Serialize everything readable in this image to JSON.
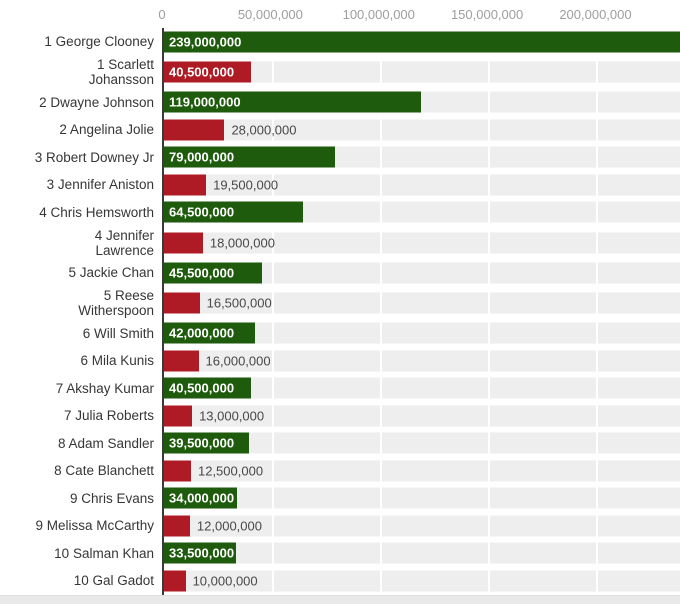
{
  "chart_data": {
    "type": "bar",
    "orientation": "horizontal",
    "title": "",
    "x_axis": {
      "position": "top",
      "ticks": [
        0,
        50000000,
        100000000,
        150000000,
        200000000
      ],
      "tick_labels": [
        "0",
        "50,000,000",
        "100,000,000",
        "150,000,000",
        "200,000,000"
      ],
      "axis_max": 239000000,
      "grid": true
    },
    "legend_position": "none",
    "series_colors": {
      "actor": "#1e5b0c",
      "actress": "#af1b24"
    },
    "rows": [
      {
        "rank": "1",
        "name": "George Clooney",
        "label_lines": [
          "1 George Clooney"
        ],
        "value": 239000000,
        "value_label": "239,000,000",
        "series": "actor",
        "annotation": "inside"
      },
      {
        "rank": "1",
        "name": "Scarlett Johansson",
        "label_lines": [
          "1 Scarlett",
          "Johansson"
        ],
        "value": 40500000,
        "value_label": "40,500,000",
        "series": "actress",
        "annotation": "inside"
      },
      {
        "rank": "2",
        "name": "Dwayne Johnson",
        "label_lines": [
          "2 Dwayne Johnson"
        ],
        "value": 119000000,
        "value_label": "119,000,000",
        "series": "actor",
        "annotation": "inside"
      },
      {
        "rank": "2",
        "name": "Angelina Jolie",
        "label_lines": [
          "2 Angelina Jolie"
        ],
        "value": 28000000,
        "value_label": "28,000,000",
        "series": "actress",
        "annotation": "outside"
      },
      {
        "rank": "3",
        "name": "Robert Downey Jr",
        "label_lines": [
          "3 Robert Downey Jr"
        ],
        "value": 79000000,
        "value_label": "79,000,000",
        "series": "actor",
        "annotation": "inside"
      },
      {
        "rank": "3",
        "name": "Jennifer Aniston",
        "label_lines": [
          "3 Jennifer Aniston"
        ],
        "value": 19500000,
        "value_label": "19,500,000",
        "series": "actress",
        "annotation": "outside"
      },
      {
        "rank": "4",
        "name": "Chris Hemsworth",
        "label_lines": [
          "4 Chris Hemsworth"
        ],
        "value": 64500000,
        "value_label": "64,500,000",
        "series": "actor",
        "annotation": "inside"
      },
      {
        "rank": "4",
        "name": "Jennifer Lawrence",
        "label_lines": [
          "4 Jennifer",
          "Lawrence"
        ],
        "value": 18000000,
        "value_label": "18,000,000",
        "series": "actress",
        "annotation": "outside"
      },
      {
        "rank": "5",
        "name": "Jackie Chan",
        "label_lines": [
          "5 Jackie Chan"
        ],
        "value": 45500000,
        "value_label": "45,500,000",
        "series": "actor",
        "annotation": "inside"
      },
      {
        "rank": "5",
        "name": "Reese Witherspoon",
        "label_lines": [
          "5 Reese",
          "Witherspoon"
        ],
        "value": 16500000,
        "value_label": "16,500,000",
        "series": "actress",
        "annotation": "outside"
      },
      {
        "rank": "6",
        "name": "Will Smith",
        "label_lines": [
          "6 Will Smith"
        ],
        "value": 42000000,
        "value_label": "42,000,000",
        "series": "actor",
        "annotation": "inside"
      },
      {
        "rank": "6",
        "name": "Mila Kunis",
        "label_lines": [
          "6 Mila Kunis"
        ],
        "value": 16000000,
        "value_label": "16,000,000",
        "series": "actress",
        "annotation": "outside"
      },
      {
        "rank": "7",
        "name": "Akshay Kumar",
        "label_lines": [
          "7 Akshay Kumar"
        ],
        "value": 40500000,
        "value_label": "40,500,000",
        "series": "actor",
        "annotation": "inside"
      },
      {
        "rank": "7",
        "name": "Julia Roberts",
        "label_lines": [
          "7 Julia Roberts"
        ],
        "value": 13000000,
        "value_label": "13,000,000",
        "series": "actress",
        "annotation": "outside"
      },
      {
        "rank": "8",
        "name": "Adam Sandler",
        "label_lines": [
          "8 Adam Sandler"
        ],
        "value": 39500000,
        "value_label": "39,500,000",
        "series": "actor",
        "annotation": "inside"
      },
      {
        "rank": "8",
        "name": "Cate Blanchett",
        "label_lines": [
          "8 Cate Blanchett"
        ],
        "value": 12500000,
        "value_label": "12,500,000",
        "series": "actress",
        "annotation": "outside"
      },
      {
        "rank": "9",
        "name": "Chris Evans",
        "label_lines": [
          "9 Chris Evans"
        ],
        "value": 34000000,
        "value_label": "34,000,000",
        "series": "actor",
        "annotation": "inside"
      },
      {
        "rank": "9",
        "name": "Melissa McCarthy",
        "label_lines": [
          "9 Melissa McCarthy"
        ],
        "value": 12000000,
        "value_label": "12,000,000",
        "series": "actress",
        "annotation": "outside"
      },
      {
        "rank": "10",
        "name": "Salman Khan",
        "label_lines": [
          "10 Salman Khan"
        ],
        "value": 33500000,
        "value_label": "33,500,000",
        "series": "actor",
        "annotation": "inside"
      },
      {
        "rank": "10",
        "name": "Gal Gadot",
        "label_lines": [
          "10 Gal Gadot"
        ],
        "value": 10000000,
        "value_label": "10,000,000",
        "series": "actress",
        "annotation": "outside"
      }
    ]
  },
  "colors": {
    "bar_green": "#1e5b0c",
    "bar_red": "#af1b24",
    "row_band": "#eeeeee",
    "axis_tick_text": "#9e9e9e",
    "row_label_text": "#363636",
    "value_inside_text": "#ffffff",
    "value_outside_text": "#484848",
    "axis_line": "#3a3a3a",
    "background": "#ffffff",
    "footer_strip": "#e9e9e9"
  }
}
